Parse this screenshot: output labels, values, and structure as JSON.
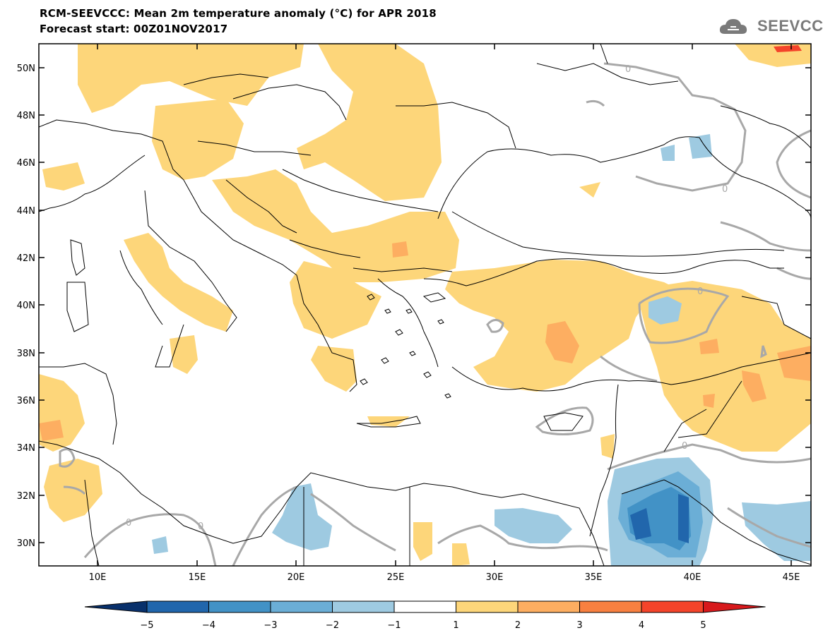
{
  "header": {
    "title_line1": "RCM-SEEVCCC: Mean 2m temperature anomaly (°C) for APR 2018",
    "title_line2": "Forecast start: 00Z01NOV2017",
    "logo_text": "SEEVCCC"
  },
  "map": {
    "lat_labels": [
      "50N",
      "48N",
      "46N",
      "44N",
      "42N",
      "40N",
      "38N",
      "36N",
      "34N",
      "32N",
      "30N"
    ],
    "lon_labels": [
      "10E",
      "15E",
      "20E",
      "25E",
      "30E",
      "35E",
      "40E",
      "45E"
    ],
    "contour_label": "0"
  },
  "colorbar": {
    "labels": [
      "−5",
      "−4",
      "−3",
      "−2",
      "−1",
      "1",
      "2",
      "3",
      "4",
      "5"
    ],
    "colors": [
      "#08306b",
      "#2166ac",
      "#4292c6",
      "#6baed6",
      "#9ecae1",
      "#ffffff",
      "#fdd67a",
      "#fdae61",
      "#f88040",
      "#f4442a",
      "#d7191c"
    ]
  }
}
